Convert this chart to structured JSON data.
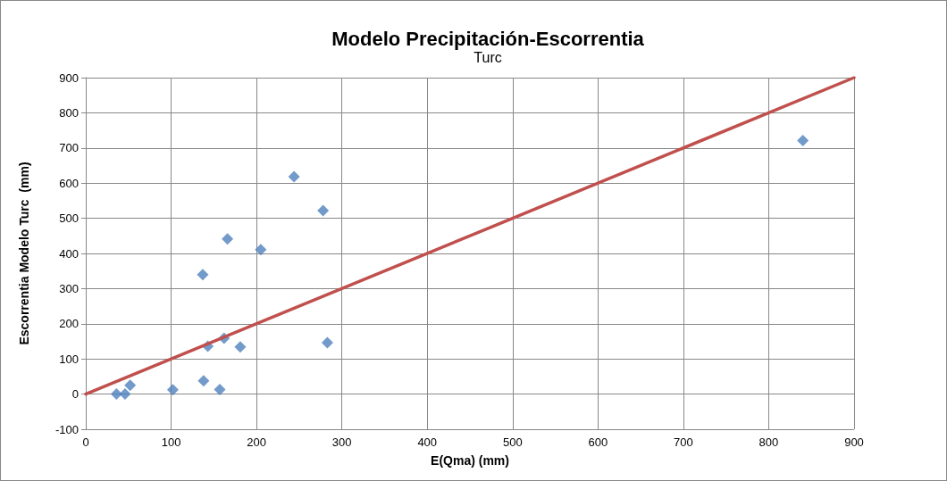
{
  "chart_data": {
    "type": "scatter",
    "title": "Modelo Precipitación-Escorrentia",
    "subtitle": "Turc",
    "xlabel": "E(Qma) (mm)",
    "ylabel": "Escorrentia Modelo Turc  (mm)",
    "xlim": [
      0,
      900
    ],
    "xticks": [
      0,
      100,
      200,
      300,
      400,
      500,
      600,
      700,
      800,
      900
    ],
    "ylim": [
      -100,
      900
    ],
    "yticks": [
      -100,
      0,
      100,
      200,
      300,
      400,
      500,
      600,
      700,
      800,
      900
    ],
    "grid": true,
    "series": [
      {
        "marker": "diamond",
        "color": "#4f81bd",
        "x": [
          36,
          46,
          52,
          102,
          137,
          138,
          143,
          157,
          162,
          166,
          181,
          205,
          244,
          278,
          283,
          840
        ],
        "values": [
          0,
          0,
          25,
          12,
          340,
          38,
          136,
          13,
          159,
          441,
          134,
          411,
          618,
          522,
          146,
          721
        ]
      },
      {
        "type": "line",
        "marker": "none",
        "line_style": "solid",
        "color": "#c0504d",
        "x": [
          0,
          900
        ],
        "values": [
          0,
          900
        ]
      }
    ]
  }
}
